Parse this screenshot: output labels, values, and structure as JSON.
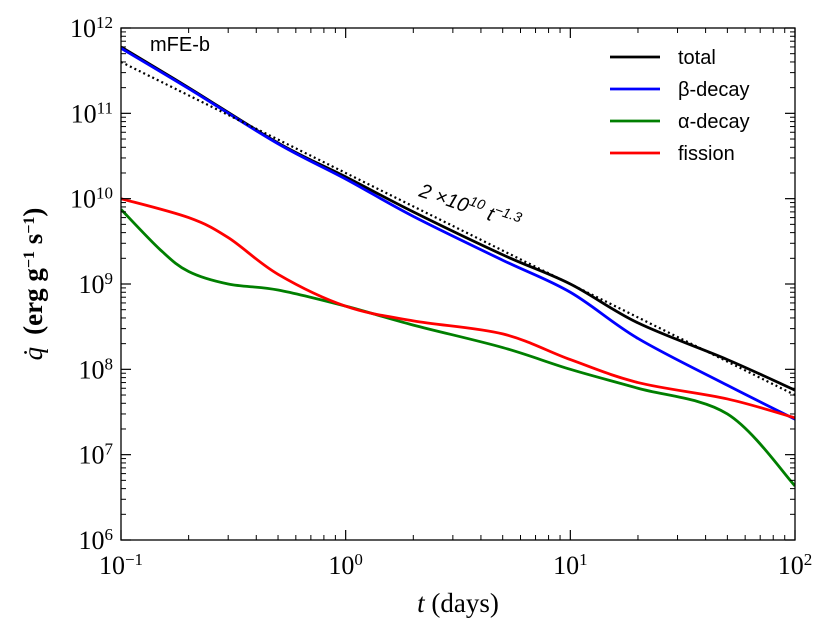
{
  "chart_data": {
    "type": "line",
    "xscale": "log",
    "yscale": "log",
    "xlim": [
      0.1,
      100
    ],
    "ylim": [
      1000000,
      1000000000000
    ],
    "grid": false,
    "legend_position": "top-right",
    "xlabel": {
      "var": "t",
      "rest": " (days)"
    },
    "ylabel": {
      "var": "q̇",
      "rest": "(erg g",
      "exp1": "−1",
      "mid": " s",
      "exp2": "−1",
      "close": ")"
    },
    "xticks": [
      {
        "value": 0.1,
        "base": "10",
        "exp": "−1"
      },
      {
        "value": 1,
        "base": "10",
        "exp": "0"
      },
      {
        "value": 10,
        "base": "10",
        "exp": "1"
      },
      {
        "value": 100,
        "base": "10",
        "exp": "2"
      }
    ],
    "yticks": [
      {
        "value": 1000000,
        "base": "10",
        "exp": "6"
      },
      {
        "value": 10000000,
        "base": "10",
        "exp": "7"
      },
      {
        "value": 100000000,
        "base": "10",
        "exp": "8"
      },
      {
        "value": 1000000000,
        "base": "10",
        "exp": "9"
      },
      {
        "value": 10000000000,
        "base": "10",
        "exp": "10"
      },
      {
        "value": 100000000000,
        "base": "10",
        "exp": "11"
      },
      {
        "value": 1000000000000,
        "base": "10",
        "exp": "12"
      }
    ],
    "annotations": {
      "model": "mFE-b",
      "fit_label": {
        "coef": "2 ×10",
        "coef_exp": "10",
        "var": " t",
        "var_exp": "−1.3"
      }
    },
    "series": [
      {
        "name": "total",
        "color": "#000000",
        "style": "solid",
        "x": [
          0.1,
          0.2,
          0.5,
          1,
          2,
          5,
          10,
          20,
          50,
          100
        ],
        "y": [
          600000000000,
          200000000000,
          45000000000,
          18000000000,
          7000000000,
          2200000000,
          1000000000,
          350000000,
          130000000,
          57000000
        ]
      },
      {
        "name": "β-decay",
        "color": "#0000ff",
        "style": "solid",
        "x": [
          0.1,
          0.2,
          0.5,
          1,
          2,
          5,
          10,
          20,
          50,
          100
        ],
        "y": [
          580000000000,
          195000000000,
          44000000000,
          17000000000,
          6200000000,
          1900000000,
          800000000,
          230000000,
          65000000,
          26000000
        ]
      },
      {
        "name": "α-decay",
        "color": "#007f00",
        "style": "solid",
        "x": [
          0.1,
          0.15,
          0.2,
          0.3,
          0.5,
          1,
          2,
          5,
          10,
          20,
          50,
          100
        ],
        "y": [
          7500000000,
          2500000000,
          1400000000,
          1000000000,
          850000000,
          550000000,
          330000000,
          180000000,
          100000000,
          60000000,
          30000000,
          4300000
        ]
      },
      {
        "name": "fission",
        "color": "#ff0000",
        "style": "solid",
        "x": [
          0.1,
          0.2,
          0.3,
          0.5,
          1,
          2,
          5,
          10,
          20,
          50,
          100
        ],
        "y": [
          10000000000,
          6000000000,
          3500000000,
          1300000000,
          550000000,
          370000000,
          260000000,
          130000000,
          70000000,
          45000000,
          27000000
        ]
      },
      {
        "name": "",
        "color": "#000000",
        "style": "dotted",
        "x": [
          0.1,
          1,
          10,
          100
        ],
        "y": [
          400000000000,
          20000000000,
          1000000000,
          50000000
        ]
      }
    ]
  }
}
